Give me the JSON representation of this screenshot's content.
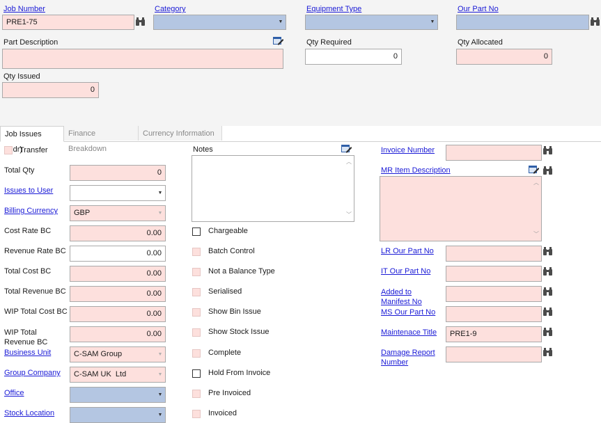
{
  "header": {
    "job_number_label": "Job Number",
    "job_number_value": "PRE1-75",
    "category_label": "Category",
    "equipment_type_label": "Equipment Type",
    "our_part_no_label": "Our Part No",
    "part_description_label": "Part Description",
    "qty_required_label": "Qty Required",
    "qty_required_value": "0",
    "qty_allocated_label": "Qty Allocated",
    "qty_allocated_value": "0",
    "qty_issued_label": "Qty Issued",
    "qty_issued_value": "0"
  },
  "tabs": [
    {
      "label": "Job Issues (Hdr)"
    },
    {
      "label": "Finance Breakdown"
    },
    {
      "label": "Currency Information"
    }
  ],
  "left": {
    "transfer_label": "Transfer",
    "total_qty_label": "Total Qty",
    "total_qty_value": "0",
    "issues_to_user_label": "Issues to User",
    "billing_currency_label": "Billing Currency",
    "billing_currency_value": "GBP",
    "cost_rate_bc_label": "Cost Rate BC",
    "cost_rate_bc_value": "0.00",
    "revenue_rate_bc_label": "Revenue Rate BC",
    "revenue_rate_bc_value": "0.00",
    "total_cost_bc_label": "Total Cost BC",
    "total_cost_bc_value": "0.00",
    "total_revenue_bc_label": "Total Revenue BC",
    "total_revenue_bc_value": "0.00",
    "wip_total_cost_bc_label": "WIP Total Cost BC",
    "wip_total_cost_bc_value": "0.00",
    "wip_total_revenue_bc_label_1": "WIP Total",
    "wip_total_revenue_bc_label_2": "Revenue BC",
    "wip_total_revenue_bc_value": "0.00",
    "business_unit_label": "Business Unit",
    "business_unit_value": "C-SAM Group",
    "group_company_label": "Group Company",
    "group_company_value": "C-SAM UK  Ltd",
    "office_label": "Office",
    "stock_location_label": "Stock Location"
  },
  "middle": {
    "notes_label": "Notes",
    "chargeable_label": "Chargeable",
    "batch_control_label": "Batch Control",
    "not_balance_type_label": "Not a Balance Type",
    "serialised_label": "Serialised",
    "show_bin_issue_label": "Show Bin Issue",
    "show_stock_issue_label": "Show Stock Issue",
    "complete_label": "Complete",
    "hold_from_invoice_label": "Hold From Invoice",
    "pre_invoiced_label": "Pre Invoiced",
    "invoiced_label": "Invoiced"
  },
  "right": {
    "invoice_number_label": "Invoice Number",
    "mr_item_description_label": "MR Item Description",
    "lr_our_part_no_label": "LR Our Part No",
    "it_our_part_no_label": "IT Our Part No",
    "added_to_manifest_label_1": "Added to",
    "added_to_manifest_label_2": "Manifest No",
    "ms_our_part_no_label": "MS Our Part No",
    "maintenance_title_label": "Maintenace Title",
    "maintenance_title_value": "PRE1-9",
    "damage_report_label_1": "Damage Report",
    "damage_report_label_2": "Number"
  },
  "icons": {
    "binoculars": "binoculars-icon",
    "notes": "edit-notes-icon",
    "dropdown": "chevron-down-icon"
  },
  "colors": {
    "required_field": "#fde0dd",
    "lookup_field": "#b4c6e2",
    "link": "#1a1ad6"
  }
}
